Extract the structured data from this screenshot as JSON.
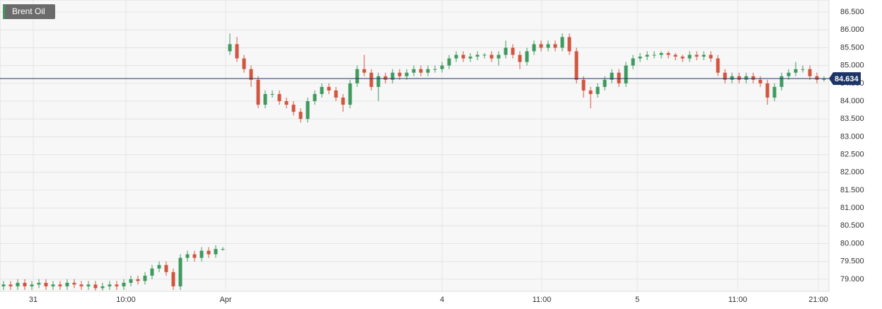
{
  "chart_data": {
    "type": "candlestick",
    "title": "Brent Oil",
    "up_color": "#3f9a5f",
    "down_color": "#d2553f",
    "grid": true,
    "current_value": 84.634,
    "current_label": "84.634",
    "current_color": "#1d3566",
    "xlim": [
      -0.5,
      116.7
    ],
    "xticks": [
      {
        "value": 4.2,
        "label": "31"
      },
      {
        "value": 17.3,
        "label": "10:00"
      },
      {
        "value": 31.4,
        "label": "Apr"
      },
      {
        "value": 62,
        "label": "4"
      },
      {
        "value": 76.1,
        "label": "11:00"
      },
      {
        "value": 89.6,
        "label": "5"
      },
      {
        "value": 103.8,
        "label": "11:00"
      },
      {
        "value": 115.2,
        "label": "21:00"
      }
    ],
    "ylim": [
      78.66,
      86.84
    ],
    "yticks": [
      {
        "value": 79,
        "label": "79.000"
      },
      {
        "value": 79.5,
        "label": "79.500"
      },
      {
        "value": 80,
        "label": "80.000"
      },
      {
        "value": 80.5,
        "label": "80.500"
      },
      {
        "value": 81,
        "label": "81.000"
      },
      {
        "value": 81.5,
        "label": "81.500"
      },
      {
        "value": 82,
        "label": "82.000"
      },
      {
        "value": 82.5,
        "label": "82.500"
      },
      {
        "value": 83,
        "label": "83.000"
      },
      {
        "value": 83.5,
        "label": "83.500"
      },
      {
        "value": 84,
        "label": "84.000"
      },
      {
        "value": 84.5,
        "label": "84.500"
      },
      {
        "value": 85,
        "label": "85.000"
      },
      {
        "value": 85.5,
        "label": "85.500"
      },
      {
        "value": 86,
        "label": "86.000"
      },
      {
        "value": 86.5,
        "label": "86.500"
      }
    ],
    "open": [
      78.8,
      78.85,
      78.8,
      78.9,
      78.8,
      78.85,
      78.9,
      78.8,
      78.85,
      78.8,
      78.9,
      78.85,
      78.8,
      78.85,
      78.75,
      78.8,
      78.85,
      78.8,
      78.9,
      79.0,
      78.95,
      79.1,
      79.3,
      79.4,
      79.2,
      78.8,
      79.6,
      79.7,
      79.6,
      79.8,
      79.7,
      79.85,
      85.4,
      85.6,
      85.2,
      84.9,
      84.6,
      83.9,
      84.2,
      84.2,
      84.0,
      83.9,
      83.7,
      83.5,
      84.0,
      84.2,
      84.4,
      84.3,
      84.1,
      83.9,
      84.5,
      84.9,
      84.8,
      84.4,
      84.7,
      84.6,
      84.8,
      84.7,
      84.8,
      84.9,
      84.8,
      84.9,
      84.9,
      85.0,
      85.2,
      85.3,
      85.2,
      85.25,
      85.3,
      85.3,
      85.2,
      85.3,
      85.5,
      85.3,
      85.1,
      85.4,
      85.6,
      85.5,
      85.6,
      85.5,
      85.8,
      85.4,
      84.6,
      84.3,
      84.2,
      84.4,
      84.6,
      84.8,
      84.5,
      85.0,
      85.2,
      85.25,
      85.3,
      85.3,
      85.35,
      85.3,
      85.25,
      85.2,
      85.3,
      85.25,
      85.3,
      85.2,
      84.8,
      84.6,
      84.7,
      84.6,
      84.7,
      84.6,
      84.5,
      84.1,
      84.4,
      84.7,
      84.8,
      84.9,
      84.9,
      84.7,
      84.6
    ],
    "high": [
      78.95,
      78.95,
      79.0,
      79.0,
      78.95,
      79.0,
      79.0,
      78.95,
      78.95,
      79.0,
      79.0,
      78.95,
      78.95,
      78.95,
      78.9,
      78.95,
      78.95,
      79.0,
      79.1,
      79.1,
      79.2,
      79.4,
      79.5,
      79.5,
      79.3,
      79.7,
      79.8,
      79.8,
      79.9,
      79.9,
      79.95,
      79.9,
      85.9,
      85.8,
      85.3,
      85.0,
      84.7,
      84.3,
      84.3,
      84.3,
      84.1,
      84.0,
      83.8,
      84.1,
      84.3,
      84.5,
      84.5,
      84.4,
      84.2,
      84.6,
      85.0,
      85.3,
      84.9,
      84.8,
      84.8,
      84.9,
      84.9,
      84.9,
      85.0,
      85.0,
      85.0,
      85.0,
      85.1,
      85.3,
      85.4,
      85.4,
      85.35,
      85.4,
      85.35,
      85.4,
      85.4,
      85.7,
      85.6,
      85.4,
      85.5,
      85.7,
      85.7,
      85.7,
      85.7,
      85.9,
      85.9,
      85.5,
      84.7,
      84.4,
      84.5,
      84.7,
      84.9,
      84.9,
      85.1,
      85.3,
      85.35,
      85.4,
      85.4,
      85.4,
      85.4,
      85.35,
      85.3,
      85.4,
      85.4,
      85.4,
      85.4,
      85.3,
      84.9,
      84.8,
      84.8,
      84.8,
      84.8,
      84.7,
      84.6,
      84.5,
      84.8,
      84.9,
      85.1,
      85.0,
      85.0,
      84.8,
      84.7
    ],
    "low": [
      78.7,
      78.7,
      78.7,
      78.7,
      78.7,
      78.75,
      78.7,
      78.7,
      78.7,
      78.7,
      78.75,
      78.7,
      78.7,
      78.68,
      78.68,
      78.7,
      78.7,
      78.7,
      78.8,
      78.85,
      78.85,
      79.0,
      79.2,
      79.1,
      78.7,
      78.7,
      79.5,
      79.5,
      79.5,
      79.6,
      79.6,
      79.8,
      85.3,
      85.1,
      84.8,
      84.4,
      83.8,
      83.8,
      84.1,
      83.9,
      83.8,
      83.6,
      83.4,
      83.4,
      83.9,
      84.1,
      84.2,
      84.0,
      83.7,
      83.8,
      84.4,
      84.7,
      84.3,
      84.0,
      84.5,
      84.5,
      84.6,
      84.6,
      84.7,
      84.7,
      84.7,
      84.8,
      84.8,
      84.9,
      85.1,
      85.1,
      85.1,
      85.15,
      85.2,
      85.1,
      85.0,
      85.2,
      85.2,
      84.9,
      85.0,
      85.3,
      85.4,
      85.4,
      85.4,
      85.4,
      85.3,
      84.5,
      84.1,
      83.8,
      84.1,
      84.3,
      84.5,
      84.4,
      84.4,
      84.9,
      85.1,
      85.15,
      85.2,
      85.2,
      85.2,
      85.15,
      85.1,
      85.1,
      85.15,
      85.15,
      85.1,
      84.7,
      84.5,
      84.5,
      84.5,
      84.5,
      84.5,
      84.4,
      83.9,
      84.0,
      84.3,
      84.6,
      84.7,
      84.8,
      84.6,
      84.5,
      84.55
    ],
    "close": [
      78.85,
      78.8,
      78.9,
      78.8,
      78.85,
      78.9,
      78.8,
      78.85,
      78.8,
      78.9,
      78.85,
      78.8,
      78.85,
      78.75,
      78.8,
      78.85,
      78.8,
      78.9,
      79.0,
      78.95,
      79.1,
      79.3,
      79.4,
      79.2,
      78.8,
      79.6,
      79.7,
      79.6,
      79.8,
      79.7,
      79.85,
      79.85,
      85.6,
      85.2,
      84.9,
      84.6,
      83.9,
      84.2,
      84.2,
      84.0,
      83.9,
      83.7,
      83.5,
      84.0,
      84.2,
      84.4,
      84.3,
      84.1,
      83.9,
      84.5,
      84.9,
      84.8,
      84.4,
      84.7,
      84.6,
      84.8,
      84.7,
      84.8,
      84.9,
      84.8,
      84.9,
      84.9,
      85.0,
      85.2,
      85.3,
      85.2,
      85.25,
      85.3,
      85.3,
      85.2,
      85.3,
      85.5,
      85.3,
      85.1,
      85.4,
      85.6,
      85.5,
      85.6,
      85.5,
      85.8,
      85.4,
      84.6,
      84.3,
      84.2,
      84.4,
      84.6,
      84.8,
      84.5,
      85.0,
      85.2,
      85.25,
      85.3,
      85.3,
      85.35,
      85.3,
      85.25,
      85.2,
      85.3,
      85.25,
      85.3,
      85.2,
      84.8,
      84.6,
      84.7,
      84.6,
      84.7,
      84.6,
      84.5,
      84.1,
      84.4,
      84.7,
      84.8,
      84.9,
      84.9,
      84.7,
      84.6,
      84.63
    ]
  }
}
